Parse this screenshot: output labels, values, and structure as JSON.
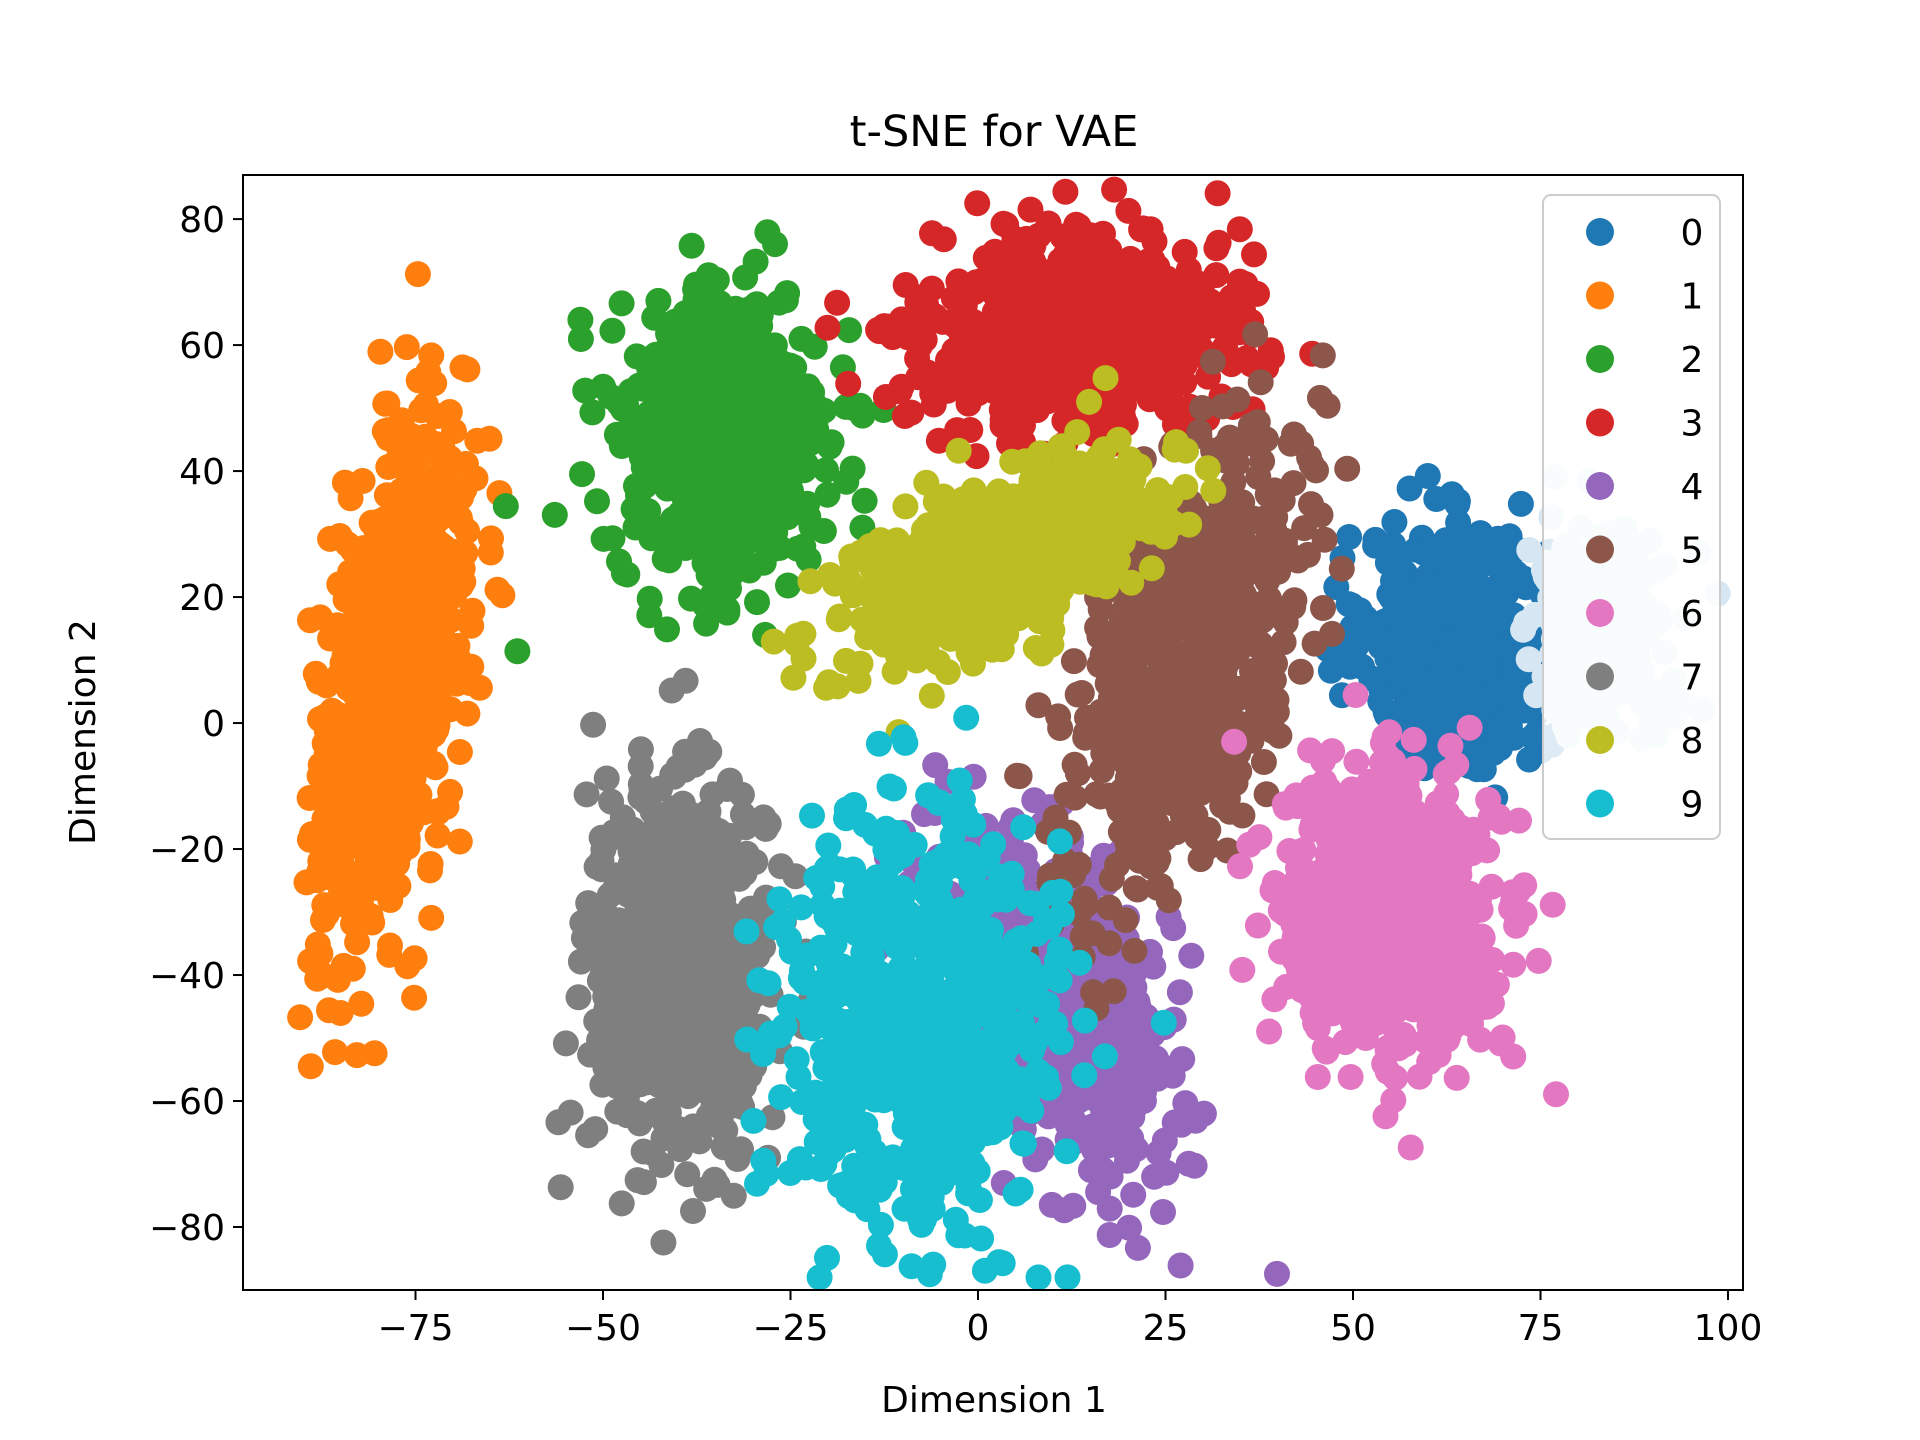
{
  "chart_data": {
    "type": "scatter",
    "title": "t-SNE for VAE",
    "xlabel": "Dimension 1",
    "ylabel": "Dimension 2",
    "xlim": [
      -98,
      102
    ],
    "ylim": [
      -90,
      87
    ],
    "x_ticks": [
      -75,
      -50,
      -25,
      0,
      25,
      50,
      75,
      100
    ],
    "y_ticks": [
      -80,
      -60,
      -40,
      -20,
      0,
      20,
      40,
      60,
      80
    ],
    "x_tick_labels": [
      "−75",
      "−50",
      "−25",
      "0",
      "25",
      "50",
      "75",
      "100"
    ],
    "y_tick_labels": [
      "−80",
      "−60",
      "−40",
      "−20",
      "0",
      "20",
      "40",
      "60",
      "80"
    ],
    "grid": false,
    "legend_position": "top-right",
    "series": [
      {
        "name": "0",
        "color": "#1f77b4",
        "clusters": [
          {
            "cx": 64,
            "cy": 12,
            "sx": 6,
            "sy": 9,
            "n": 650
          }
        ]
      },
      {
        "name": "1",
        "color": "#ff7f0e",
        "clusters": [
          {
            "cx": -78,
            "cy": 6,
            "sx": 5,
            "sy": 20,
            "rho": 0.45,
            "n": 750
          }
        ]
      },
      {
        "name": "2",
        "color": "#2ca02c",
        "clusters": [
          {
            "cx": -34,
            "cy": 45,
            "sx": 7,
            "sy": 12,
            "n": 650
          }
        ]
      },
      {
        "name": "3",
        "color": "#d62728",
        "clusters": [
          {
            "cx": 13,
            "cy": 62,
            "sx": 10,
            "sy": 8,
            "n": 700
          }
        ]
      },
      {
        "name": "4",
        "color": "#9467bd",
        "clusters": [
          {
            "cx": 10,
            "cy": -45,
            "sx": 8,
            "sy": 14,
            "rho": -0.5,
            "n": 600
          }
        ]
      },
      {
        "name": "5",
        "color": "#8c564b",
        "clusters": [
          {
            "cx": 28,
            "cy": 10,
            "sx": 8,
            "sy": 18,
            "rho": 0.6,
            "n": 650
          }
        ]
      },
      {
        "name": "6",
        "color": "#e377c2",
        "clusters": [
          {
            "cx": 55,
            "cy": -30,
            "sx": 7,
            "sy": 11,
            "n": 700
          }
        ]
      },
      {
        "name": "7",
        "color": "#7f7f7f",
        "clusters": [
          {
            "cx": -40,
            "cy": -38,
            "sx": 6,
            "sy": 15,
            "n": 650
          }
        ]
      },
      {
        "name": "8",
        "color": "#bcbd22",
        "clusters": [
          {
            "cx": 2,
            "cy": 25,
            "sx": 10,
            "sy": 8,
            "rho": 0.6,
            "n": 700
          }
        ]
      },
      {
        "name": "9",
        "color": "#17becf",
        "clusters": [
          {
            "cx": -8,
            "cy": -48,
            "sx": 9,
            "sy": 15,
            "n": 750
          }
        ]
      },
      {
        "name": "",
        "color": "#d6e6f2",
        "clusters": [
          {
            "cx": 83,
            "cy": 15,
            "sx": 5,
            "sy": 8,
            "n": 220
          }
        ]
      }
    ]
  }
}
